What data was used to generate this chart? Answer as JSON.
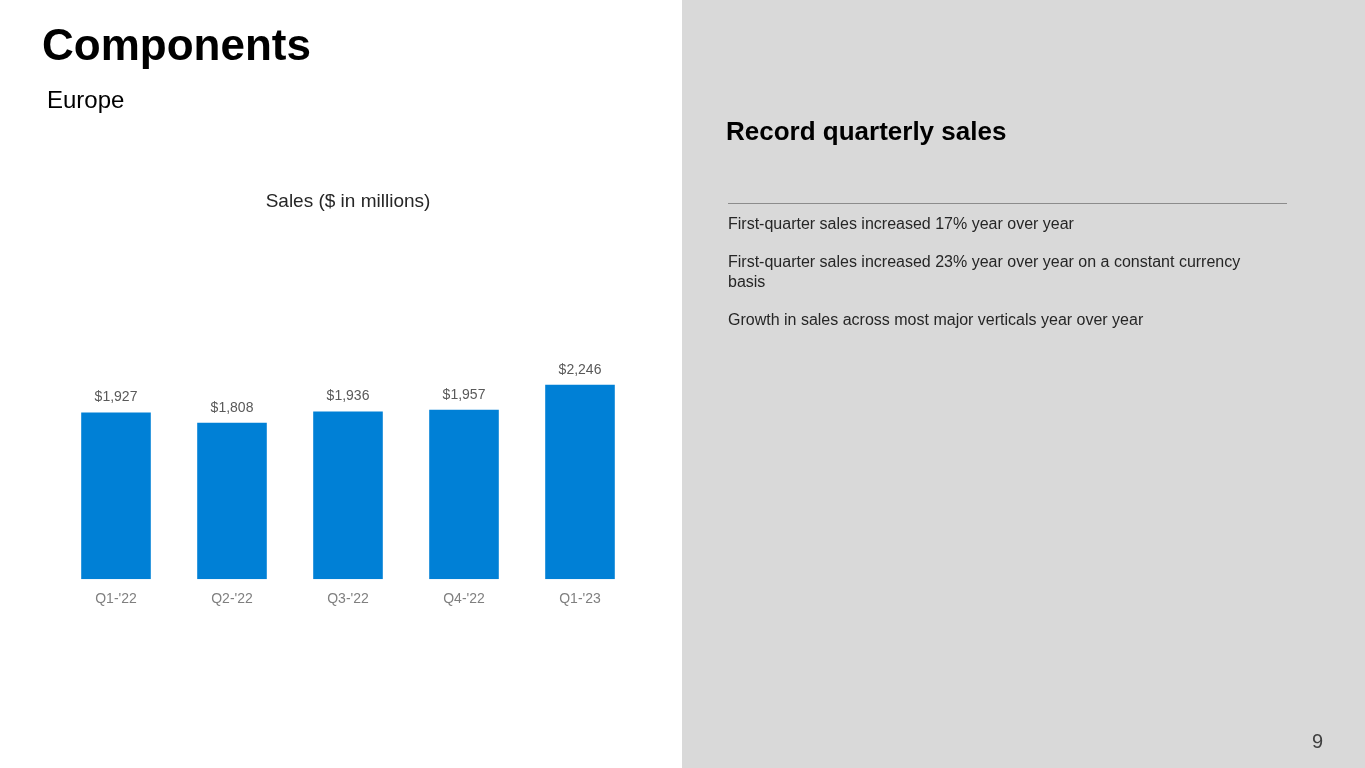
{
  "chart_data": {
    "type": "bar",
    "title": "Components",
    "subtitle": "Europe",
    "categories": [
      "Q1-'22",
      "Q2-'22",
      "Q3-'22",
      "Q4-'22",
      "Q1-'23"
    ],
    "values": [
      1927,
      1808,
      1936,
      1957,
      2246
    ],
    "value_labels": [
      "$1,927",
      "$1,808",
      "$1,936",
      "$1,957",
      "$2,246"
    ],
    "color": "#0080d6",
    "grid": false,
    "legend": false,
    "annotations": [
      "Sales ($ in millions)",
      "Record quarterly sales",
      "First-quarter sales increased 17% year over year",
      "First-quarter sales increased 23% year over year on a constant currency basis",
      "Growth in sales across most major verticals year over year",
      "9"
    ]
  }
}
